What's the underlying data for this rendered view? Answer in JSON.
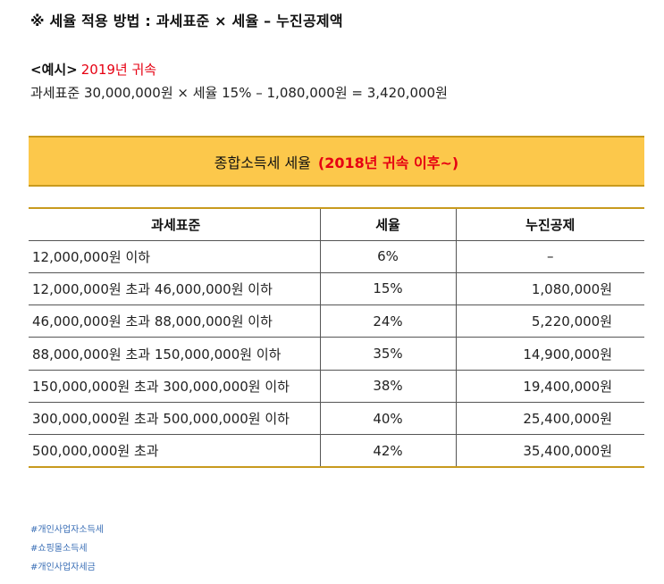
{
  "formula": "※ 세율 적용 방법 : 과세표준 × 세율 – 누진공제액",
  "example": {
    "label": "<예시>",
    "year": "2019년 귀속",
    "calculation": "과세표준 30,000,000원 × 세율 15% – 1,080,000원 = 3,420,000원"
  },
  "table_title": {
    "main": "종합소득세 세율",
    "sub": "(2018년 귀속 이후~)"
  },
  "table": {
    "headers": [
      "과세표준",
      "세율",
      "누진공제"
    ],
    "rows": [
      [
        "12,000,000원 이하",
        "6%",
        "–"
      ],
      [
        "12,000,000원 초과 46,000,000원 이하",
        "15%",
        "1,080,000원"
      ],
      [
        "46,000,000원 초과 88,000,000원 이하",
        "24%",
        "5,220,000원"
      ],
      [
        "88,000,000원 초과 150,000,000원 이하",
        "35%",
        "14,900,000원"
      ],
      [
        "150,000,000원 초과 300,000,000원 이하",
        "38%",
        "19,400,000원"
      ],
      [
        "300,000,000원 초과 500,000,000원 이하",
        "40%",
        "25,400,000원"
      ],
      [
        "500,000,000원 초과",
        "42%",
        "35,400,000원"
      ]
    ]
  },
  "tags": [
    "#개인사업자소득세",
    "#쇼핑몰소득세",
    "#개인사업자세금"
  ],
  "colors": {
    "accent_red": "#e60012",
    "header_fill": "#fcc84b",
    "header_border": "#c89a1e",
    "tag_link": "#3b6fb6"
  }
}
